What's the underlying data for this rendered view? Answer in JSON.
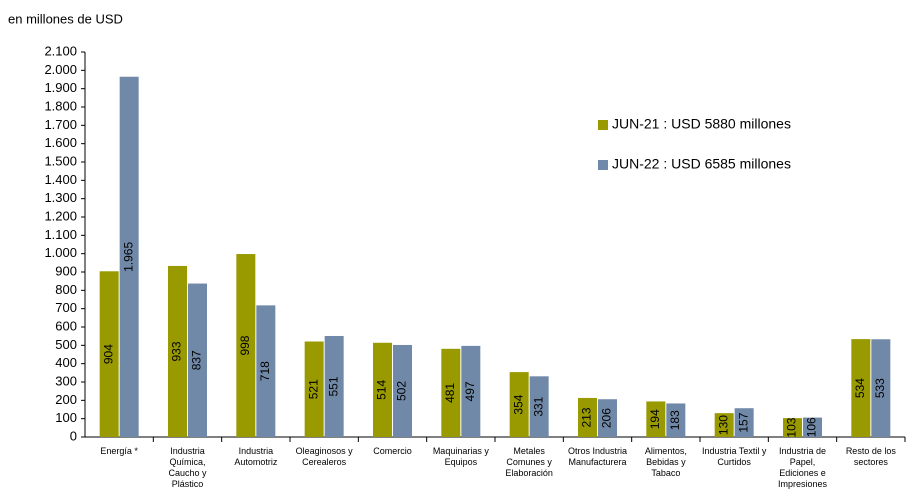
{
  "chart_data": {
    "type": "bar",
    "y_label": "en millones de USD",
    "categories": [
      "Energía *",
      "Industria Química, Caucho y Plástico",
      "Industria Automotriz",
      "Oleaginosos y Cerealeros",
      "Comercio",
      "Maquinarias y Equipos",
      "Metales Comunes y Elaboración",
      "Otros Industria Manufacturera",
      "Alimentos, Bebidas y Tabaco",
      "Industria Textil y Curtidos",
      "Industria de Papel, Ediciones e Impresiones",
      "Resto de los sectores"
    ],
    "series": [
      {
        "name": "JUN-21 : USD 5880 millones",
        "color": "#999a00",
        "values": [
          904,
          933,
          998,
          521,
          514,
          481,
          354,
          213,
          194,
          130,
          103,
          534
        ],
        "value_labels": [
          "904",
          "933",
          "998",
          "521",
          "514",
          "481",
          "354",
          "213",
          "194",
          "130",
          "103",
          "534"
        ]
      },
      {
        "name": "JUN-22 : USD 6585 millones",
        "color": "#7189a8",
        "values": [
          1965,
          837,
          718,
          551,
          502,
          497,
          331,
          206,
          183,
          157,
          106,
          533
        ],
        "value_labels": [
          "1.965",
          "837",
          "718",
          "551",
          "502",
          "497",
          "331",
          "206",
          "183",
          "157",
          "106",
          "533"
        ]
      }
    ],
    "ylim": [
      0,
      2100
    ],
    "yticks": [
      0,
      100,
      200,
      300,
      400,
      500,
      600,
      700,
      800,
      900,
      {
        "value": 1000,
        "label": "1.000"
      },
      {
        "value": 1100,
        "label": "1.100"
      },
      {
        "value": 1200,
        "label": "1.200"
      },
      {
        "value": 1300,
        "label": "1.300"
      },
      {
        "value": 1400,
        "label": "1.400"
      },
      {
        "value": 1500,
        "label": "1.500"
      },
      {
        "value": 1600,
        "label": "1.600"
      },
      {
        "value": 1700,
        "label": "1.700"
      },
      {
        "value": 1800,
        "label": "1.800"
      },
      {
        "value": 1900,
        "label": "1.900"
      },
      {
        "value": 2000,
        "label": "2.000"
      },
      {
        "value": 2100,
        "label": "2.100"
      }
    ],
    "grid": false,
    "legend": "right"
  }
}
